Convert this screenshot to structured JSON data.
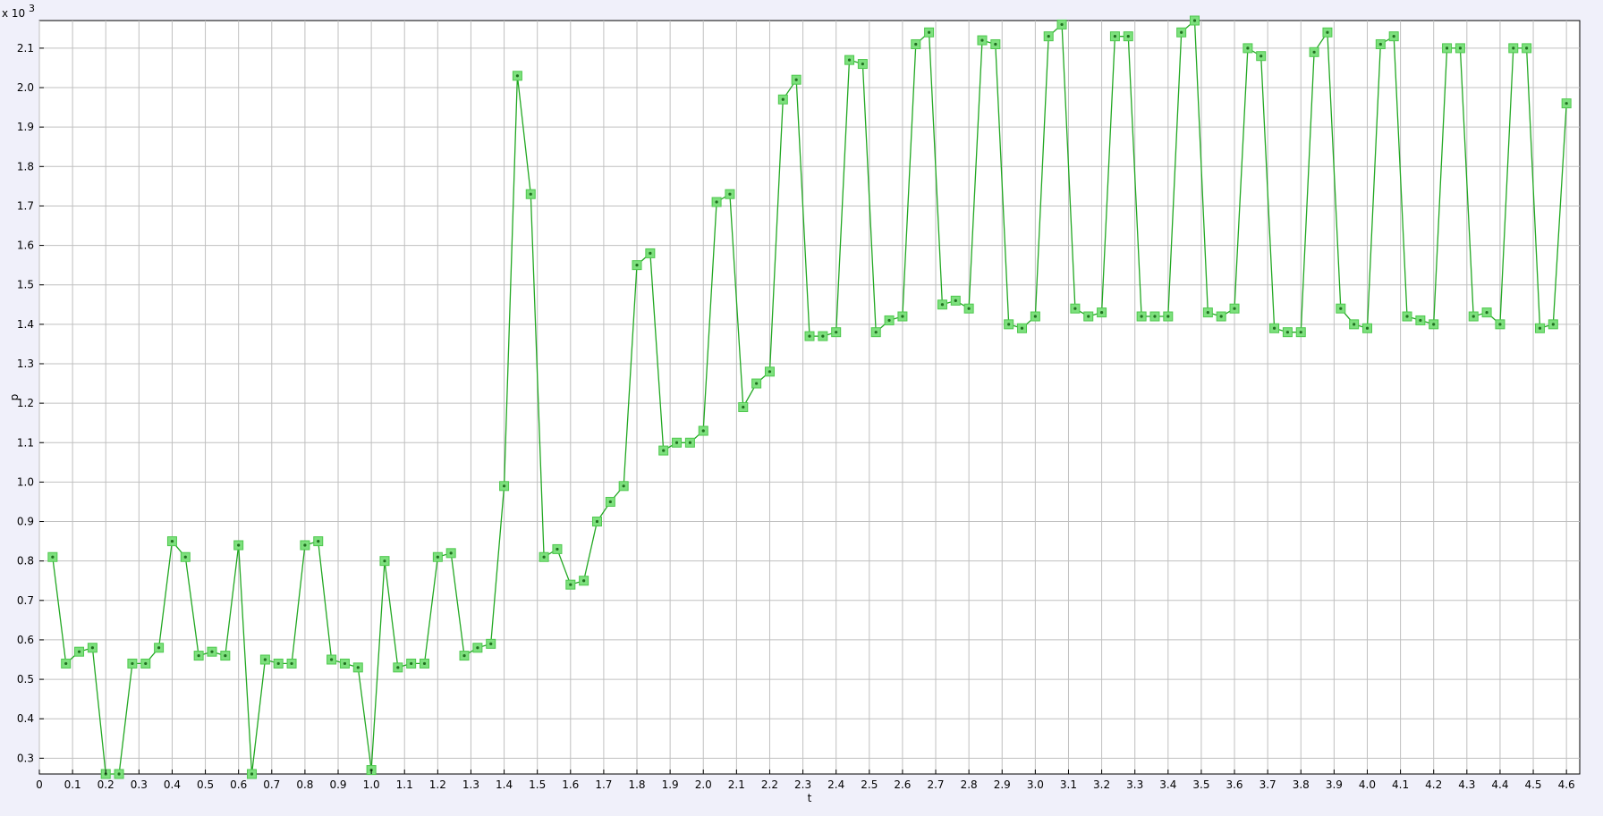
{
  "chart_data": {
    "type": "line",
    "xlabel": "t",
    "ylabel": "p",
    "y_multiplier": {
      "base": "x 10",
      "exponent": "3"
    },
    "xlim": [
      0,
      4.64
    ],
    "ylim": [
      0.26,
      2.17
    ],
    "grid": true,
    "line_color": "#22a822",
    "marker_color": "#7de07d",
    "x_ticks": [
      0,
      0.1,
      0.2,
      0.3,
      0.4,
      0.5,
      0.6,
      0.7,
      0.8,
      0.9,
      1.0,
      1.1,
      1.2,
      1.3,
      1.4,
      1.5,
      1.6,
      1.7,
      1.8,
      1.9,
      2.0,
      2.1,
      2.2,
      2.3,
      2.4,
      2.5,
      2.6,
      2.7,
      2.8,
      2.9,
      3.0,
      3.1,
      3.2,
      3.3,
      3.4,
      3.5,
      3.6,
      3.7,
      3.8,
      3.9,
      4.0,
      4.1,
      4.2,
      4.3,
      4.4,
      4.5,
      4.6
    ],
    "x_tick_labels": [
      "0",
      "0.1",
      "0.2",
      "0.3",
      "0.4",
      "0.5",
      "0.6",
      "0.7",
      "0.8",
      "0.9",
      "1.0",
      "1.1",
      "1.2",
      "1.3",
      "1.4",
      "1.5",
      "1.6",
      "1.7",
      "1.8",
      "1.9",
      "2.0",
      "2.1",
      "2.2",
      "2.3",
      "2.4",
      "2.5",
      "2.6",
      "2.7",
      "2.8",
      "2.9",
      "3.0",
      "3.1",
      "3.2",
      "3.3",
      "3.4",
      "3.5",
      "3.6",
      "3.7",
      "3.8",
      "3.9",
      "4.0",
      "4.1",
      "4.2",
      "4.3",
      "4.4",
      "4.5",
      "4.6"
    ],
    "y_ticks": [
      0.3,
      0.4,
      0.5,
      0.6,
      0.7,
      0.8,
      0.9,
      1.0,
      1.1,
      1.2,
      1.3,
      1.4,
      1.5,
      1.6,
      1.7,
      1.8,
      1.9,
      2.0,
      2.1
    ],
    "y_tick_labels": [
      "0.3",
      "0.4",
      "0.5",
      "0.6",
      "0.7",
      "0.8",
      "0.9",
      "1.0",
      "1.1",
      "1.2",
      "1.3",
      "1.4",
      "1.5",
      "1.6",
      "1.7",
      "1.8",
      "1.9",
      "2.0",
      "2.1"
    ],
    "series": [
      {
        "x": [
          0.04,
          0.08,
          0.12,
          0.16,
          0.2,
          0.24,
          0.28,
          0.32,
          0.36,
          0.4,
          0.44,
          0.48,
          0.52,
          0.56,
          0.6,
          0.64,
          0.68,
          0.72,
          0.76,
          0.8,
          0.84,
          0.88,
          0.92,
          0.96,
          1.0,
          1.04,
          1.08,
          1.12,
          1.16,
          1.2,
          1.24,
          1.28,
          1.32,
          1.36,
          1.4,
          1.44,
          1.48,
          1.52,
          1.56,
          1.6,
          1.64,
          1.68,
          1.72,
          1.76,
          1.8,
          1.84,
          1.88,
          1.92,
          1.96,
          2.0,
          2.04,
          2.08,
          2.12,
          2.16,
          2.2,
          2.24,
          2.28,
          2.32,
          2.36,
          2.4,
          2.44,
          2.48,
          2.52,
          2.56,
          2.6,
          2.64,
          2.68,
          2.72,
          2.76,
          2.8,
          2.84,
          2.88,
          2.92,
          2.96,
          3.0,
          3.04,
          3.08,
          3.12,
          3.16,
          3.2,
          3.24,
          3.28,
          3.32,
          3.36,
          3.4,
          3.44,
          3.48,
          3.52,
          3.56,
          3.6,
          3.64,
          3.68,
          3.72,
          3.76,
          3.8,
          3.84,
          3.88,
          3.92,
          3.96,
          4.0,
          4.04,
          4.08,
          4.12,
          4.16,
          4.2,
          4.24,
          4.28,
          4.32,
          4.36,
          4.4,
          4.44,
          4.48,
          4.52,
          4.56,
          4.6
        ],
        "y": [
          0.81,
          0.54,
          0.57,
          0.58,
          0.26,
          0.26,
          0.54,
          0.54,
          0.58,
          0.85,
          0.81,
          0.56,
          0.57,
          0.56,
          0.84,
          0.26,
          0.55,
          0.54,
          0.54,
          0.84,
          0.85,
          0.55,
          0.54,
          0.53,
          0.27,
          0.8,
          0.53,
          0.54,
          0.54,
          0.81,
          0.82,
          0.56,
          0.58,
          0.59,
          0.99,
          2.03,
          1.73,
          0.81,
          0.83,
          0.74,
          0.75,
          0.9,
          0.95,
          0.99,
          1.55,
          1.58,
          1.08,
          1.1,
          1.1,
          1.13,
          1.71,
          1.73,
          1.19,
          1.25,
          1.28,
          1.97,
          2.02,
          1.37,
          1.37,
          1.38,
          2.07,
          2.06,
          1.38,
          1.41,
          1.42,
          2.11,
          2.14,
          1.45,
          1.46,
          1.44,
          2.12,
          2.11,
          1.4,
          1.39,
          1.42,
          2.13,
          2.16,
          1.44,
          1.42,
          1.43,
          2.13,
          2.13,
          1.42,
          1.42,
          1.42,
          2.14,
          2.17,
          1.43,
          1.42,
          1.44,
          2.1,
          2.08,
          1.39,
          1.38,
          1.38,
          2.09,
          2.14,
          1.44,
          1.4,
          1.39,
          2.11,
          2.13,
          1.42,
          1.41,
          1.4,
          2.1,
          2.1,
          1.42,
          1.43,
          1.4,
          2.1,
          2.1,
          1.39,
          1.4,
          1.96
        ]
      }
    ]
  }
}
